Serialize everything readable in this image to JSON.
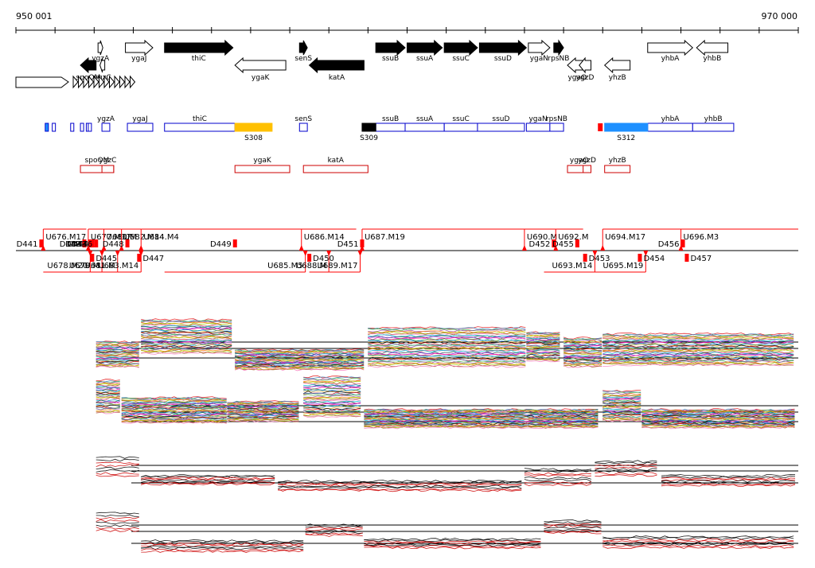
{
  "coord": {
    "start_label": "950 001",
    "end_label": "970 000",
    "start": 950001,
    "end": 970000
  },
  "colors": {
    "gene_strong": "#000000",
    "gene_weak": "#ffffff",
    "segment_blue": "#0000cc",
    "segment_red": "#cc0000",
    "cyan": "#1e90ff",
    "gold": "#ffc000",
    "up_red": "#ff0000"
  },
  "genes_top": [
    {
      "name": "spoOM",
      "start": 951650,
      "end": 952050,
      "strand": "-",
      "fill": "black",
      "row": 1
    },
    {
      "name": "ygzA",
      "start": 952100,
      "end": 952200,
      "strand": "+",
      "fill": "white",
      "row": 0
    },
    {
      "name": "ygzC",
      "start": 952150,
      "end": 952270,
      "strand": "-",
      "fill": "white",
      "row": 1
    },
    {
      "name": "ygaJ",
      "start": 952800,
      "end": 953500,
      "strand": "+",
      "fill": "white",
      "row": 0
    },
    {
      "name": "thiC",
      "start": 953800,
      "end": 955550,
      "strand": "+",
      "fill": "black",
      "row": 0
    },
    {
      "name": "ygaK",
      "start": 955600,
      "end": 956900,
      "strand": "-",
      "fill": "white",
      "row": 1
    },
    {
      "name": "senS",
      "start": 957250,
      "end": 957450,
      "strand": "+",
      "fill": "black",
      "row": 0
    },
    {
      "name": "katA",
      "start": 957500,
      "end": 958900,
      "strand": "-",
      "fill": "black",
      "row": 1
    },
    {
      "name": "ssuB",
      "start": 959200,
      "end": 959950,
      "strand": "+",
      "fill": "black",
      "row": 0
    },
    {
      "name": "ssuA",
      "start": 960000,
      "end": 960900,
      "strand": "+",
      "fill": "black",
      "row": 0
    },
    {
      "name": "ssuC",
      "start": 960950,
      "end": 961800,
      "strand": "+",
      "fill": "black",
      "row": 0
    },
    {
      "name": "ssuD",
      "start": 961850,
      "end": 963050,
      "strand": "+",
      "fill": "black",
      "row": 0
    },
    {
      "name": "ygaN",
      "start": 963100,
      "end": 963650,
      "strand": "+",
      "fill": "white",
      "row": 0
    },
    {
      "name": "rpsNB",
      "start": 963750,
      "end": 964000,
      "strand": "+",
      "fill": "black",
      "row": 0
    },
    {
      "name": "ygaO",
      "start": 964100,
      "end": 964600,
      "strand": "-",
      "fill": "white",
      "row": 1
    },
    {
      "name": "ygzD",
      "start": 964400,
      "end": 964700,
      "strand": "-",
      "fill": "white",
      "row": 1
    },
    {
      "name": "yhzB",
      "start": 965050,
      "end": 965700,
      "strand": "-",
      "fill": "white",
      "row": 1
    },
    {
      "name": "yhbA",
      "start": 966150,
      "end": 967300,
      "strand": "+",
      "fill": "white",
      "row": 0
    },
    {
      "name": "yhbB",
      "start": 967400,
      "end": 968200,
      "strand": "-",
      "fill": "white",
      "row": 0
    }
  ],
  "gene_label_layout": [
    {
      "gene": "spoOM",
      "pos": "below"
    },
    {
      "gene": "ygzA",
      "pos": "right-below"
    },
    {
      "gene": "ygzC",
      "pos": "below2"
    },
    {
      "gene": "ygaJ",
      "pos": "below"
    },
    {
      "gene": "thiC",
      "pos": "below"
    },
    {
      "gene": "ygaK",
      "pos": "below"
    },
    {
      "gene": "senS",
      "pos": "below"
    },
    {
      "gene": "katA",
      "pos": "below"
    },
    {
      "gene": "ssuB",
      "pos": "below"
    },
    {
      "gene": "ssuA",
      "pos": "below"
    },
    {
      "gene": "ssuC",
      "pos": "below"
    },
    {
      "gene": "ssuD",
      "pos": "below"
    },
    {
      "gene": "ygaN",
      "pos": "below"
    },
    {
      "gene": "rpsNB",
      "pos": "below"
    },
    {
      "gene": "ygaO",
      "pos": "below"
    },
    {
      "gene": "ygzD",
      "pos": "below"
    },
    {
      "gene": "yhzB",
      "pos": "below"
    },
    {
      "gene": "yhbA",
      "pos": "below"
    },
    {
      "gene": "yhbB",
      "pos": "below"
    }
  ],
  "segments_plus": [
    {
      "name": "ygzA",
      "start": 952200,
      "end": 952400
    },
    {
      "name": "ygaJ",
      "start": 952850,
      "end": 953500
    },
    {
      "name": "thiC",
      "start": 953800,
      "end": 955600
    },
    {
      "name": "senS",
      "start": 957250,
      "end": 957450
    },
    {
      "name": "ssuB",
      "start": 959200,
      "end": 959950
    },
    {
      "name": "ssuA",
      "start": 959950,
      "end": 960950
    },
    {
      "name": "ssuC",
      "start": 960950,
      "end": 961800
    },
    {
      "name": "ssuD",
      "start": 961800,
      "end": 963000
    },
    {
      "name": "ygaN",
      "start": 963050,
      "end": 963650
    },
    {
      "name": "rpsNB",
      "start": 963650,
      "end": 964000
    },
    {
      "name": "yhbA",
      "start": 966150,
      "end": 967300
    },
    {
      "name": "yhbB",
      "start": 967300,
      "end": 968350
    }
  ],
  "special_segments_plus": [
    {
      "name": "S308",
      "start": 955600,
      "end": 956550,
      "color": "#ffc000"
    },
    {
      "name": "S309",
      "start": 958850,
      "end": 959200,
      "color": "#000000"
    },
    {
      "name": "S312",
      "start": 965050,
      "end": 966150,
      "color": "#1e90ff"
    }
  ],
  "small_marks_plus": [
    950750,
    950930,
    951400,
    951650,
    951800,
    951850
  ],
  "segments_minus": [
    {
      "name": "spoOM",
      "start": 951650,
      "end": 952500
    },
    {
      "name": "ygzC",
      "start": 952200,
      "end": 952500
    },
    {
      "name": "ygaK",
      "start": 955600,
      "end": 957000
    },
    {
      "name": "katA",
      "start": 957350,
      "end": 959000
    },
    {
      "name": "ygaO",
      "start": 964100,
      "end": 964700
    },
    {
      "name": "ygzD",
      "start": 964500,
      "end": 964700
    },
    {
      "name": "yhzB",
      "start": 965050,
      "end": 965700
    }
  ],
  "upshifts_top": [
    {
      "label": "U676.M17",
      "start": 950700,
      "end": 951800
    },
    {
      "label": "U677.M17",
      "start": 951850,
      "end": 952250
    },
    {
      "label": "U680.M",
      "start": 952250,
      "end": 952700
    },
    {
      "label": "U682.M14",
      "start": 952700,
      "end": 953200
    },
    {
      "label": "U684.M4",
      "start": 953200,
      "end": 957400
    },
    {
      "label": "U686.M14",
      "start": 957300,
      "end": 958700
    },
    {
      "label": "U687.M19",
      "start": 958850,
      "end": 963000
    },
    {
      "label": "U690.M",
      "start": 963000,
      "end": 963800
    },
    {
      "label": "U692.M",
      "start": 963800,
      "end": 964500
    },
    {
      "label": "U694.M17",
      "start": 965000,
      "end": 967000
    },
    {
      "label": "U696.M3",
      "start": 967000,
      "end": 970000
    }
  ],
  "downshifts_top": [
    "D441",
    "D442",
    "D443",
    "D444",
    "D446",
    "D448",
    "D449",
    "D451",
    "D452",
    "D455",
    "D456"
  ],
  "downshifts_top_pos": [
    950600,
    951700,
    951850,
    951900,
    952000,
    952800,
    955550,
    958800,
    963700,
    964300,
    967000
  ],
  "upshifts_bottom": [
    {
      "label": "U678.M20",
      "start": 950700,
      "end": 951900
    },
    {
      "label": "U679.M",
      "start": 951900,
      "end": 952200
    },
    {
      "label": "U681.M",
      "start": 952200,
      "end": 952600
    },
    {
      "label": "U683.M14",
      "start": 952600,
      "end": 953200
    },
    {
      "label": "U685.M5",
      "start": 953800,
      "end": 957400
    },
    {
      "label": "U688.M",
      "start": 957500,
      "end": 958000
    },
    {
      "label": "U689.M17",
      "start": 958000,
      "end": 958800
    },
    {
      "label": "U693.M14",
      "start": 963500,
      "end": 964800
    },
    {
      "label": "U695.M19",
      "start": 964800,
      "end": 966100
    }
  ],
  "downshifts_bottom": [
    "D445",
    "D447",
    "D450",
    "D453",
    "D454",
    "D457"
  ],
  "downshifts_bottom_pos": [
    951900,
    953100,
    957450,
    964500,
    965900,
    967100
  ]
}
